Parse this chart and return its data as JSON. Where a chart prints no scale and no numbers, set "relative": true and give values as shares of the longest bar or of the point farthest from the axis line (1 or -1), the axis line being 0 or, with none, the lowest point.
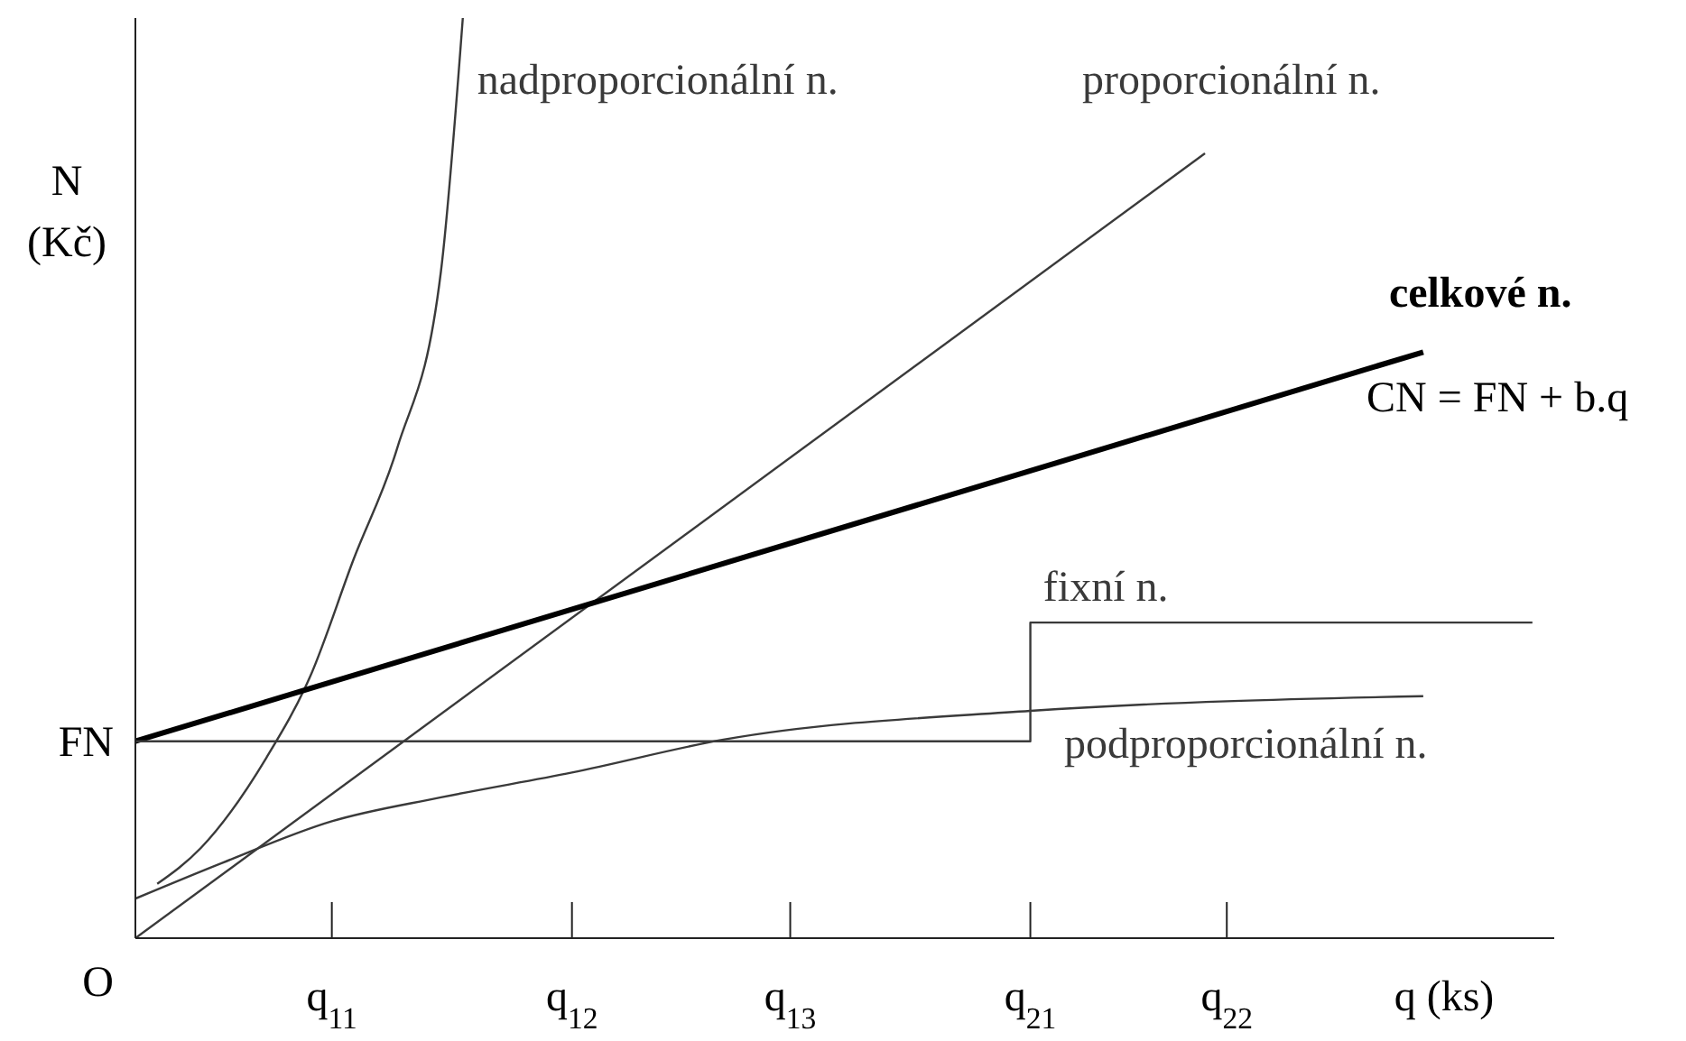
{
  "chart_data": {
    "type": "line",
    "relative": true,
    "ylabel": "N (Kč)",
    "xlabel": "q (ks)",
    "categories": [
      null,
      null,
      null,
      null,
      null,
      null,
      null,
      null,
      null,
      "q$_{11}$",
      null,
      null,
      null,
      null,
      null,
      null,
      null,
      null,
      null,
      null,
      "q$_{12}$",
      null,
      null,
      null,
      null,
      null,
      null,
      null,
      null,
      null,
      "q$_{13}$",
      null,
      null,
      null,
      null,
      null,
      null,
      null,
      null,
      null,
      null,
      "q$_{21}$",
      null,
      null,
      null,
      null,
      null,
      null,
      null,
      null,
      "q$_{22}$",
      null,
      null,
      null,
      null,
      null,
      null,
      null,
      null,
      null,
      null,
      null,
      null,
      null,
      null,
      null
    ],
    "series": [
      {
        "name": "nadproporcionální n.",
        "color": "#3a3a3a",
        "values": [
          null,
          0.059,
          null,
          0.098,
          null,
          null,
          0.196,
          null,
          0.284,
          null,
          0.412,
          null,
          0.533,
          null,
          0.725,
          1,
          null,
          null,
          null,
          null,
          null,
          null,
          null,
          null,
          null,
          null,
          null,
          null,
          null,
          null,
          null,
          null,
          null,
          null,
          null,
          null,
          null,
          null,
          null,
          null,
          null,
          null,
          null,
          null,
          null,
          null,
          null,
          null,
          null,
          null,
          null,
          null,
          null,
          null,
          null,
          null,
          null,
          null,
          null,
          null,
          null,
          null,
          null,
          null,
          null,
          null
        ]
      },
      {
        "name": "proporcionální n.",
        "color": "#3a3a3a",
        "values": [
          0,
          null,
          null,
          null,
          null,
          null,
          null,
          null,
          null,
          null,
          null,
          null,
          null,
          null,
          null,
          null,
          null,
          null,
          null,
          null,
          null,
          null,
          null,
          null,
          null,
          null,
          null,
          null,
          null,
          null,
          null,
          null,
          null,
          null,
          null,
          null,
          null,
          null,
          null,
          null,
          null,
          null,
          null,
          null,
          null,
          null,
          null,
          null,
          null,
          0.853,
          null,
          null,
          null,
          null,
          null,
          null,
          null,
          null,
          null,
          null,
          null,
          null,
          null,
          null,
          null,
          null
        ]
      },
      {
        "name": "celkové n.",
        "color": "#000000",
        "values": [
          0.214,
          null,
          null,
          null,
          null,
          null,
          null,
          null,
          null,
          null,
          null,
          null,
          null,
          null,
          null,
          null,
          null,
          null,
          null,
          null,
          null,
          null,
          null,
          null,
          null,
          null,
          null,
          null,
          null,
          null,
          null,
          null,
          null,
          null,
          null,
          null,
          null,
          null,
          null,
          null,
          null,
          null,
          null,
          null,
          null,
          null,
          null,
          null,
          null,
          null,
          null,
          null,
          null,
          null,
          null,
          null,
          null,
          null,
          null,
          0.637,
          null,
          null,
          null,
          null,
          null,
          null
        ]
      },
      {
        "name": "fixní n.",
        "type": "step",
        "color": "#3a3a3a",
        "values": [
          0.214,
          null,
          null,
          null,
          null,
          null,
          null,
          null,
          null,
          null,
          null,
          null,
          null,
          null,
          null,
          null,
          null,
          null,
          null,
          null,
          null,
          null,
          null,
          null,
          null,
          null,
          null,
          null,
          null,
          null,
          null,
          null,
          null,
          null,
          null,
          null,
          null,
          null,
          null,
          null,
          null,
          0.343,
          null,
          null,
          null,
          null,
          null,
          null,
          null,
          null,
          null,
          null,
          null,
          null,
          null,
          null,
          null,
          null,
          null,
          null,
          null,
          null,
          null,
          null,
          0.343,
          null
        ]
      },
      {
        "name": "podproporcionální n.",
        "color": "#3a3a3a",
        "values": [
          0.043,
          null,
          null,
          null,
          0.082,
          null,
          null,
          null,
          null,
          0.127,
          null,
          null,
          null,
          null,
          0.153,
          null,
          null,
          null,
          null,
          null,
          0.18,
          null,
          null,
          null,
          null,
          null,
          null,
          0.216,
          null,
          null,
          null,
          null,
          null,
          null,
          null,
          null,
          null,
          null,
          null,
          null,
          null,
          0.247,
          null,
          null,
          null,
          null,
          null,
          null,
          null,
          null,
          null,
          null,
          null,
          null,
          null,
          null,
          null,
          null,
          null,
          0.263,
          null,
          null,
          null,
          null,
          null,
          null
        ]
      }
    ],
    "annotations": [
      "CN = FN + b.q",
      "FN",
      "O"
    ]
  }
}
